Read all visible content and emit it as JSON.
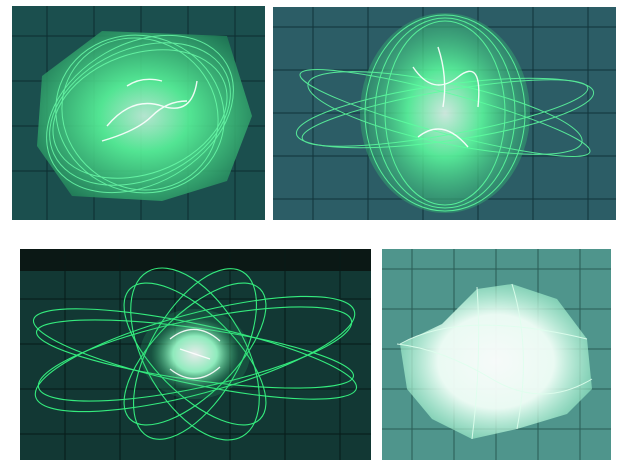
{
  "figure": {
    "panels": [
      {
        "id": "p1",
        "label": "",
        "trace_color": "#4dff9a",
        "screen_color": "#1b4f4e",
        "grid_color": "#0d2e30"
      },
      {
        "id": "p2",
        "label": "",
        "trace_color": "#4dff9a",
        "screen_color": "#2c5d66",
        "grid_color": "#11343a"
      },
      {
        "id": "p3",
        "label": "",
        "trace_color": "#38ff86",
        "screen_color": "#123834",
        "grid_color": "#071a18"
      },
      {
        "id": "p4",
        "label": "",
        "trace_color": "#9dffd0",
        "screen_color": "#4f958c",
        "grid_color": "#2a5c55"
      }
    ]
  }
}
